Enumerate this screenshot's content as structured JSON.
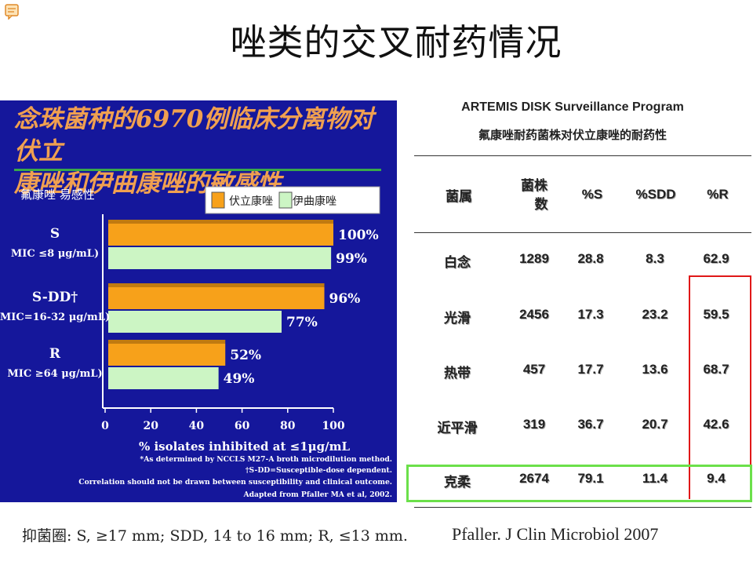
{
  "page": {
    "title": "唑类的交叉耐药情况",
    "icon": "comment-icon"
  },
  "chart_panel": {
    "title_line1": "念珠菌种的6970例临床分离物对伏立",
    "title_line2": "康唑和伊曲康唑的敏感性",
    "fluconazole_label": "氟康唑 易感性",
    "footnotes": [
      "*As determined by NCCLS M27-A broth microdilution method.",
      "†S-DD=Susceptible-dose dependent.",
      "Correlation should not be drawn between susceptibility and clinical outcome.",
      "Adapted from Pfaller MA et al, 2002."
    ]
  },
  "chart_data": {
    "type": "bar",
    "orientation": "horizontal",
    "categories": [
      {
        "name": "S",
        "sub": "MIC ≤8 μg/mL)"
      },
      {
        "name": "S-DD†",
        "sub": "MIC=16-32 μg/mL)"
      },
      {
        "name": "R",
        "sub": "MIC ≥64 μg/mL)"
      }
    ],
    "series": [
      {
        "name": "伏立康唑",
        "color": "#f7a11a",
        "values": [
          100,
          96,
          52
        ],
        "labels": [
          "100%",
          "96%",
          "52%"
        ]
      },
      {
        "name": "伊曲康唑",
        "color": "#ccf5c4",
        "values": [
          99,
          77,
          49
        ],
        "labels": [
          "99%",
          "77%",
          "49%"
        ]
      }
    ],
    "xlim": [
      0,
      100
    ],
    "xticks": [
      "0",
      "20",
      "40",
      "60",
      "80",
      "100"
    ],
    "xlabel": "% isolates inhibited at ≤1μg/mL",
    "legend": "top-right"
  },
  "table": {
    "program": "ARTEMIS DISK Surveillance Program",
    "subtitle": "氟康唑耐药菌株对伏立康唑的耐药性",
    "headers": [
      "菌属",
      "菌株数",
      "%S",
      "%SDD",
      "%R"
    ],
    "header_strain_line1": "菌株",
    "header_strain_line2": "数",
    "rows": [
      [
        "白念",
        "1289",
        "28.8",
        "8.3",
        "62.9"
      ],
      [
        "光滑",
        "2456",
        "17.3",
        "23.2",
        "59.5"
      ],
      [
        "热带",
        "457",
        "17.7",
        "13.6",
        "68.7"
      ],
      [
        "近平滑",
        "319",
        "36.7",
        "20.7",
        "42.6"
      ],
      [
        "克柔",
        "2674",
        "79.1",
        "11.4",
        "9.4"
      ]
    ]
  },
  "footer": {
    "breakpoints": "抑菌圈: S, ≥17 mm; SDD, 14 to 16 mm; R, ≤13 mm.",
    "source": "Pfaller. J Clin Microbiol 2007"
  }
}
